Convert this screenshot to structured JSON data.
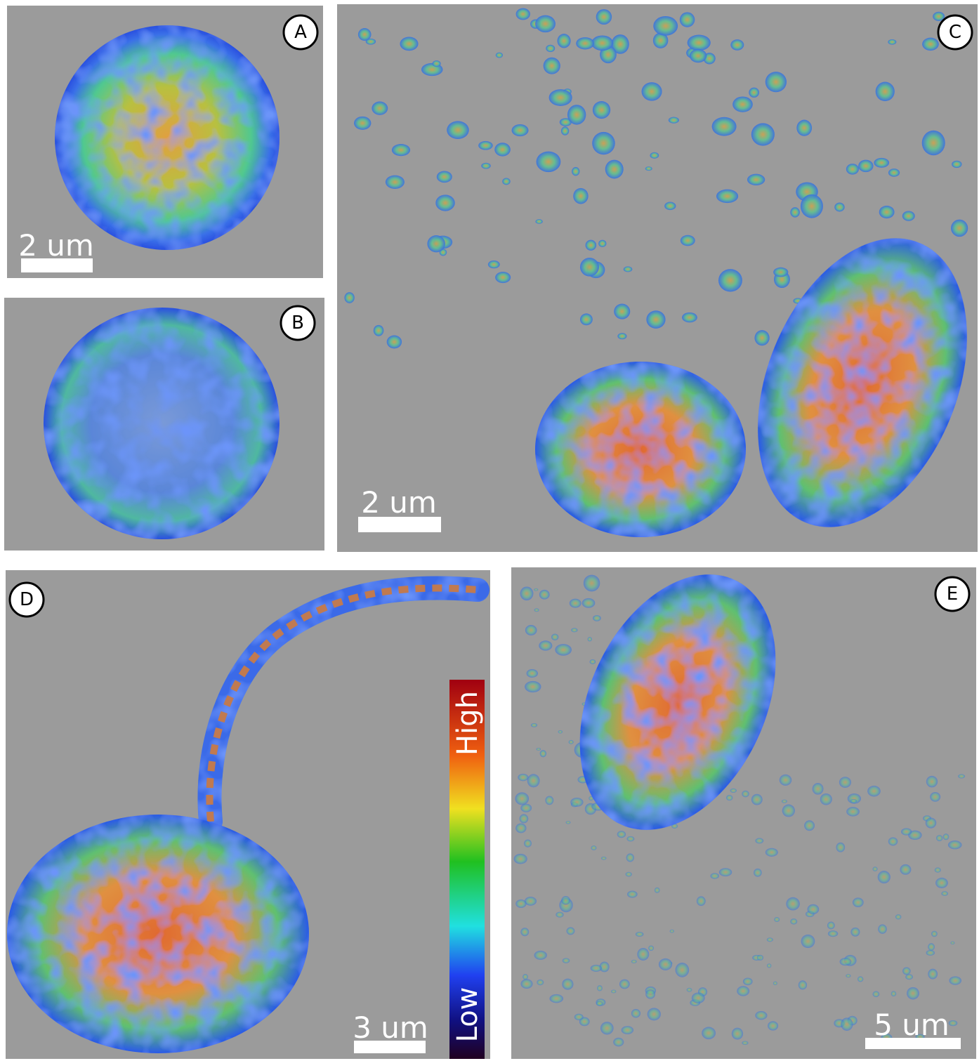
{
  "panels": [
    {
      "label": "A",
      "scale_bar": "2 um"
    },
    {
      "label": "B"
    },
    {
      "label": "C",
      "scale_bar": "2 um"
    },
    {
      "label": "D",
      "scale_bar": "3 um"
    },
    {
      "label": "E",
      "scale_bar": "5 um"
    }
  ],
  "colorbar": {
    "high": "High",
    "low": "Low"
  }
}
